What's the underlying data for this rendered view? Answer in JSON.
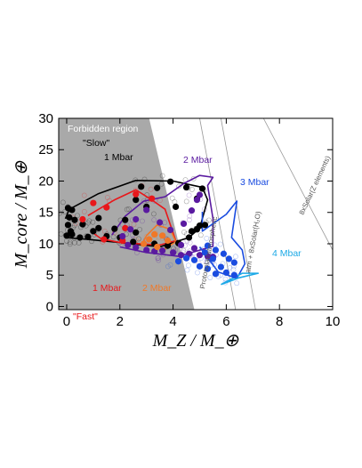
{
  "chart_data": {
    "type": "scatter",
    "xlim": [
      -0.3,
      10
    ],
    "ylim": [
      -0.5,
      30
    ],
    "xticks": [
      0,
      2,
      4,
      6,
      8,
      10
    ],
    "yticks": [
      0,
      5,
      10,
      15,
      20,
      25,
      30
    ],
    "xlabel": "M_Z / M_⊕",
    "ylabel": "M_core / M_⊕",
    "grid": false,
    "forbidden_region": {
      "label": "Forbidden region",
      "polygon": [
        [
          -0.3,
          -0.5
        ],
        [
          -0.3,
          30
        ],
        [
          3.1,
          30
        ],
        [
          4.8,
          -0.5
        ]
      ],
      "color": "#a9a9a9"
    },
    "reference_lines": [
      {
        "name": "Protosolar/atmospheric",
        "label": "Protosolar/atmospheric",
        "points": [
          [
            5.0,
            30
          ],
          [
            6.35,
            -0.5
          ]
        ],
        "color": "#999999"
      },
      {
        "name": "atm + 8xSolar(H2O)",
        "label": "atm + 8xSolar(H₂O)",
        "points": [
          [
            5.8,
            30
          ],
          [
            7.1,
            -0.5
          ]
        ],
        "color": "#999999"
      },
      {
        "name": "8xSolar(Z elements)",
        "label": "8xSolar(Z elements)",
        "points": [
          [
            7.4,
            30
          ],
          [
            10.0,
            9.0
          ]
        ],
        "color": "#999999"
      }
    ],
    "regions": [
      {
        "name": "1 Mbar slow",
        "color": "#000000",
        "polygon": [
          [
            -0.05,
            14
          ],
          [
            0.1,
            15.5
          ],
          [
            1.2,
            18
          ],
          [
            2.6,
            20.1
          ],
          [
            4.0,
            20
          ],
          [
            5.1,
            19
          ],
          [
            5.3,
            17
          ],
          [
            5.0,
            12.5
          ],
          [
            4.6,
            11
          ],
          [
            3.5,
            9.5
          ],
          [
            2.0,
            10.2
          ],
          [
            0.8,
            10.7
          ],
          [
            -0.05,
            11
          ]
        ]
      },
      {
        "name": "1 Mbar fast",
        "color": "#e8171a",
        "polygon": [
          [
            0.8,
            14.5
          ],
          [
            1.8,
            17
          ],
          [
            2.6,
            18.6
          ],
          [
            3.2,
            17
          ],
          [
            3.7,
            15.5
          ],
          [
            3.9,
            13
          ],
          [
            4.1,
            10.5
          ],
          [
            3.5,
            9.8
          ],
          [
            2.0,
            10.2
          ],
          [
            1.3,
            10.8
          ],
          [
            0.9,
            12
          ]
        ]
      },
      {
        "name": "2 Mbar slow",
        "color": "#5a1aa0",
        "polygon": [
          [
            1.7,
            11.4
          ],
          [
            2.2,
            14.4
          ],
          [
            2.9,
            16.8
          ],
          [
            3.7,
            17.5
          ],
          [
            4.4,
            19.6
          ],
          [
            5.0,
            20.9
          ],
          [
            5.5,
            20.6
          ],
          [
            5.3,
            19.3
          ],
          [
            5.5,
            14
          ],
          [
            5.5,
            9.6
          ],
          [
            4.2,
            8.0
          ],
          [
            3.0,
            8.6
          ],
          [
            2.0,
            9.5
          ]
        ]
      },
      {
        "name": "2 Mbar fast",
        "color": "#f07828",
        "polygon": [
          [
            2.8,
            9.6
          ],
          [
            3.0,
            11.3
          ],
          [
            3.4,
            13
          ],
          [
            3.9,
            12.3
          ],
          [
            4.1,
            10.3
          ],
          [
            3.5,
            8.7
          ]
        ]
      },
      {
        "name": "3 Mbar",
        "color": "#1a4ce0",
        "polygon": [
          [
            5.1,
            15.1
          ],
          [
            5.1,
            12
          ],
          [
            6.0,
            14.7
          ],
          [
            6.4,
            16.8
          ],
          [
            6.2,
            11
          ],
          [
            6.6,
            9
          ],
          [
            6.7,
            6.8
          ],
          [
            6.4,
            4.5
          ],
          [
            5.7,
            5.5
          ],
          [
            5.0,
            9.5
          ]
        ]
      },
      {
        "name": "4 Mbar",
        "color": "#1ca9e6",
        "polygon": [
          [
            5.8,
            3.5
          ],
          [
            6.6,
            5.3
          ],
          [
            7.2,
            5.3
          ],
          [
            6.5,
            4.6
          ],
          [
            5.8,
            3.5
          ]
        ]
      }
    ],
    "series": [
      {
        "name": "1 Mbar",
        "color": "#000000",
        "points": [
          [
            0.05,
            15.7
          ],
          [
            0.2,
            15.4
          ],
          [
            0.1,
            14.2
          ],
          [
            0.0,
            11.3
          ],
          [
            0.15,
            12.0
          ],
          [
            0.05,
            13.0
          ],
          [
            0.6,
            13.1
          ],
          [
            0.8,
            11.1
          ],
          [
            0.5,
            11.0
          ],
          [
            1.0,
            12.0
          ],
          [
            1.5,
            11.2
          ],
          [
            2.0,
            11.0
          ],
          [
            2.5,
            10.3
          ],
          [
            1.8,
            12.4
          ],
          [
            2.6,
            11.8
          ],
          [
            3.3,
            10.0
          ],
          [
            3.8,
            9.7
          ],
          [
            4.2,
            10.1
          ],
          [
            4.6,
            11.0
          ],
          [
            4.9,
            12.3
          ],
          [
            5.0,
            12.9
          ],
          [
            5.2,
            13.0
          ],
          [
            4.9,
            17.2
          ],
          [
            5.1,
            18.8
          ],
          [
            4.5,
            19.0
          ],
          [
            3.9,
            19.9
          ],
          [
            3.4,
            18.9
          ],
          [
            2.8,
            19.1
          ],
          [
            2.6,
            17.0
          ],
          [
            3.0,
            15.9
          ],
          [
            2.2,
            13.8
          ],
          [
            1.2,
            14.1
          ],
          [
            0.3,
            13.8
          ],
          [
            0.2,
            11.5
          ],
          [
            1.2,
            12.5
          ],
          [
            4.1,
            15.9
          ],
          [
            4.7,
            12.0
          ]
        ]
      },
      {
        "name": "1 Mbar fast",
        "color": "#e8171a",
        "points": [
          [
            1.0,
            16.5
          ],
          [
            0.6,
            13.9
          ],
          [
            1.4,
            10.7
          ],
          [
            2.1,
            10.5
          ],
          [
            2.2,
            12.5
          ],
          [
            3.2,
            17.2
          ],
          [
            2.6,
            17.9
          ],
          [
            1.5,
            15.8
          ]
        ]
      },
      {
        "name": "2 Mbar",
        "color": "#5a1aa0",
        "points": [
          [
            2.1,
            11.2
          ],
          [
            2.3,
            9.8
          ],
          [
            2.6,
            9.4
          ],
          [
            3.0,
            9.0
          ],
          [
            3.3,
            8.8
          ],
          [
            3.6,
            8.9
          ],
          [
            4.0,
            8.6
          ],
          [
            4.3,
            8.2
          ],
          [
            4.6,
            8.4
          ],
          [
            5.0,
            8.2
          ],
          [
            5.3,
            8.0
          ],
          [
            5.5,
            7.9
          ],
          [
            3.9,
            12.2
          ],
          [
            4.4,
            13.2
          ],
          [
            4.7,
            15.3
          ],
          [
            4.9,
            17.0
          ],
          [
            5.0,
            17.8
          ],
          [
            3.5,
            13.4
          ],
          [
            3.0,
            15.4
          ],
          [
            2.6,
            13.9
          ],
          [
            2.4,
            12.3
          ],
          [
            4.8,
            9.3
          ],
          [
            4.3,
            9.8
          ]
        ]
      },
      {
        "name": "2 Mbar fast",
        "color": "#f07828",
        "points": [
          [
            2.9,
            10.0
          ],
          [
            3.1,
            10.7
          ],
          [
            3.3,
            11.5
          ],
          [
            3.6,
            11.3
          ],
          [
            3.8,
            10.5
          ],
          [
            3.4,
            9.5
          ]
        ]
      },
      {
        "name": "3 Mbar",
        "color": "#1a4ce0",
        "points": [
          [
            5.3,
            9.7
          ],
          [
            5.6,
            9.0
          ],
          [
            5.9,
            8.4
          ],
          [
            6.1,
            7.6
          ],
          [
            6.3,
            7.0
          ],
          [
            5.5,
            7.6
          ],
          [
            5.8,
            6.3
          ],
          [
            6.0,
            5.4
          ],
          [
            6.3,
            5.0
          ],
          [
            5.2,
            8.6
          ],
          [
            4.8,
            7.4
          ],
          [
            5.0,
            6.4
          ],
          [
            5.3,
            6.0
          ],
          [
            5.6,
            5.2
          ],
          [
            4.5,
            7.7
          ],
          [
            4.2,
            7.2
          ]
        ]
      }
    ],
    "annotations": [
      {
        "text": "Forbidden region",
        "color": "#ffffff"
      },
      {
        "text": "\"Slow\"",
        "color": "#000000"
      },
      {
        "text": "1 Mbar",
        "color": "#000000"
      },
      {
        "text": "1 Mbar",
        "color": "#e8171a"
      },
      {
        "text": "\"Fast\"",
        "color": "#e8171a"
      },
      {
        "text": "2 Mbar",
        "color": "#5a1aa0"
      },
      {
        "text": "2 Mbar",
        "color": "#f07828"
      },
      {
        "text": "3 Mbar",
        "color": "#1a4ce0"
      },
      {
        "text": "4 Mbar",
        "color": "#1ca9e6"
      }
    ]
  }
}
